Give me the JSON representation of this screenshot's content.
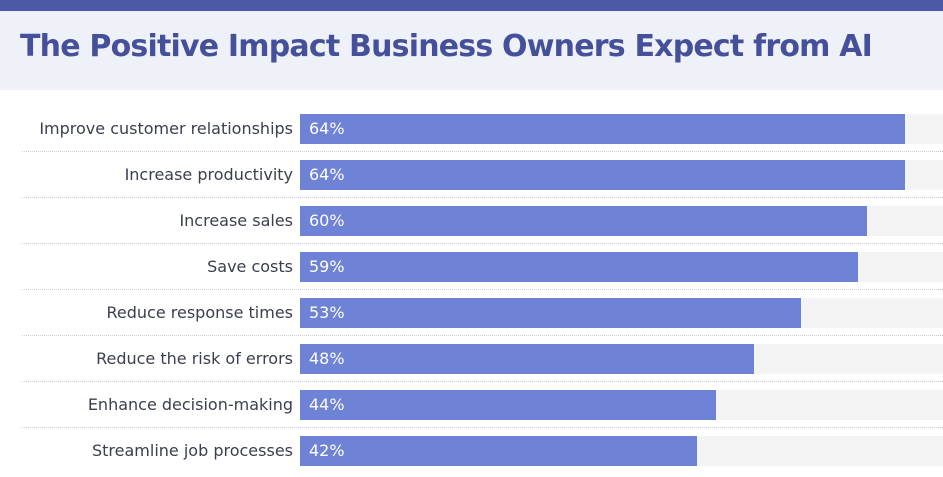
{
  "header": {
    "title": "The Positive Impact Business Owners Expect from AI"
  },
  "chart_data": {
    "type": "bar",
    "orientation": "horizontal",
    "title": "The Positive Impact Business Owners Expect from AI",
    "categories": [
      "Improve customer relationships",
      "Increase productivity",
      "Increase sales",
      "Save costs",
      "Reduce response times",
      "Reduce the risk of errors",
      "Enhance decision-making",
      "Streamline job processes"
    ],
    "values": [
      64,
      64,
      60,
      59,
      53,
      48,
      44,
      42
    ],
    "value_labels": [
      "64%",
      "64%",
      "60%",
      "59%",
      "53%",
      "48%",
      "44%",
      "42%"
    ],
    "unit": "%",
    "xlim": [
      0,
      68
    ],
    "xlabel": "",
    "ylabel": "",
    "grid": false,
    "legend": "none",
    "colors": {
      "bar": "#6e82d6",
      "track": "#f4f4f5",
      "title": "#45509a",
      "header_bg": "#eef1f7",
      "top_strip": "#4c5aa6"
    }
  }
}
